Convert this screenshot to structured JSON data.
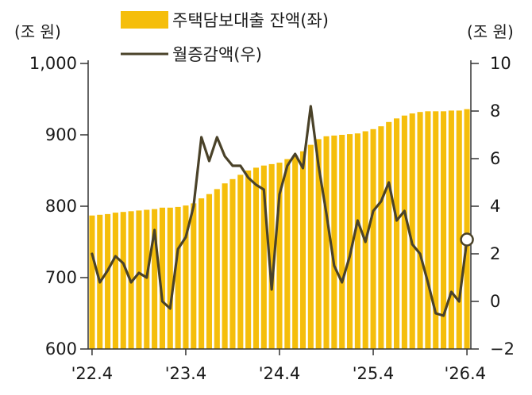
{
  "colors": {
    "bar": "#F5BE0B",
    "line": "#4A4229",
    "axis": "#333333",
    "marker_fill": "#ffffff"
  },
  "chart_data": {
    "type": "bar+line",
    "units": {
      "left": "(조 원)",
      "right": "(조 원)"
    },
    "legend": [
      {
        "label": "주택담보대출 잔액(좌)",
        "kind": "bar"
      },
      {
        "label": "월증감액(우)",
        "kind": "line"
      }
    ],
    "y_left": {
      "range": [
        600,
        1000
      ],
      "ticks": [
        "600",
        "700",
        "800",
        "900",
        "1,000"
      ]
    },
    "y_right": {
      "range": [
        -2,
        10
      ],
      "ticks": [
        "−2",
        "0",
        "2",
        "4",
        "6",
        "8",
        "10"
      ]
    },
    "x_tick_labels": [
      "'22.4",
      "'23.4",
      "'24.4",
      "'25.4",
      "'26.4"
    ],
    "x_tick_months": [
      "2022-04",
      "2023-04",
      "2024-04",
      "2025-04",
      "2026-04"
    ],
    "months": [
      "2022-04",
      "2022-05",
      "2022-06",
      "2022-07",
      "2022-08",
      "2022-09",
      "2022-10",
      "2022-11",
      "2022-12",
      "2023-01",
      "2023-02",
      "2023-03",
      "2023-04",
      "2023-05",
      "2023-06",
      "2023-07",
      "2023-08",
      "2023-09",
      "2023-10",
      "2023-11",
      "2023-12",
      "2024-01",
      "2024-02",
      "2024-03",
      "2024-04",
      "2024-05",
      "2024-06",
      "2024-07",
      "2024-08",
      "2024-09",
      "2024-10",
      "2024-11",
      "2024-12",
      "2025-01",
      "2025-02",
      "2025-03",
      "2025-04",
      "2025-05",
      "2025-06",
      "2025-07",
      "2025-08",
      "2025-09",
      "2025-10",
      "2025-11",
      "2025-12",
      "2026-01",
      "2026-02",
      "2026-03",
      "2026-04"
    ],
    "series": [
      {
        "name": "주택담보대출 잔액(좌)",
        "type": "bar",
        "axis": "left",
        "values": [
          787,
          788,
          789,
          791,
          792,
          793,
          794,
          795,
          796,
          798,
          798,
          799,
          801,
          804,
          811,
          817,
          824,
          832,
          838,
          844,
          850,
          854,
          857,
          859,
          861,
          866,
          871,
          877,
          886,
          894,
          898,
          899,
          900,
          901,
          902,
          905,
          908,
          912,
          918,
          923,
          927,
          930,
          932,
          933,
          933,
          933,
          934,
          934,
          936
        ]
      },
      {
        "name": "월증감액(우)",
        "type": "line",
        "axis": "right",
        "values": [
          2.0,
          0.8,
          1.3,
          1.9,
          1.6,
          0.8,
          1.2,
          1.0,
          3.0,
          0.0,
          -0.3,
          2.2,
          2.7,
          4.0,
          6.9,
          5.9,
          6.9,
          6.1,
          5.7,
          5.7,
          5.2,
          4.9,
          4.7,
          0.5,
          4.5,
          5.7,
          6.2,
          5.6,
          8.2,
          5.7,
          3.7,
          1.5,
          0.8,
          1.9,
          3.4,
          2.5,
          3.8,
          4.2,
          5.0,
          3.4,
          3.8,
          2.4,
          2.0,
          0.8,
          -0.5,
          -0.6,
          0.4,
          0.0,
          2.6
        ],
        "last_point_marker": true
      }
    ]
  }
}
